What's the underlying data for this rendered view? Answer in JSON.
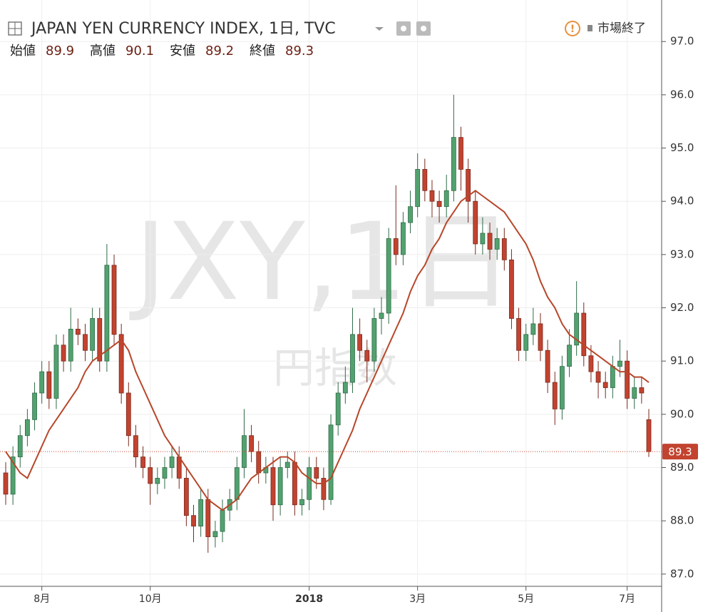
{
  "chart_data": {
    "type": "candlestick",
    "title": "JAPAN YEN CURRENCY INDEX, 1日, TVC",
    "status": "市場終了",
    "watermark": "JXY,1日",
    "watermark_sub": "円指数",
    "ohlc_labels": [
      "始値",
      "高値",
      "安値",
      "終値"
    ],
    "categories": [
      null,
      null,
      null,
      null,
      null,
      "8月",
      null,
      null,
      null,
      null,
      null,
      null,
      null,
      null,
      null,
      null,
      null,
      null,
      null,
      null,
      "10月",
      null,
      null,
      null,
      null,
      null,
      null,
      null,
      null,
      null,
      null,
      null,
      null,
      null,
      null,
      null,
      null,
      null,
      null,
      null,
      null,
      null,
      "2018",
      null,
      null,
      null,
      null,
      null,
      null,
      null,
      null,
      null,
      null,
      null,
      null,
      null,
      null,
      "3月",
      null,
      null,
      null,
      null,
      null,
      null,
      null,
      null,
      null,
      null,
      null,
      null,
      null,
      null,
      "5月",
      null,
      null,
      null,
      null,
      null,
      null,
      null,
      null,
      null,
      null,
      null,
      null,
      null,
      "7月",
      null,
      null,
      null
    ],
    "open": [
      88.9,
      88.5,
      89.2,
      89.6,
      89.9,
      90.4,
      90.8,
      90.3,
      91.3,
      91.0,
      91.6,
      91.5,
      91.2,
      91.8,
      91.0,
      92.8,
      91.5,
      90.4,
      89.6,
      89.2,
      89.0,
      88.7,
      88.8,
      89.0,
      89.2,
      88.8,
      88.1,
      87.9,
      88.4,
      87.7,
      87.8,
      88.2,
      88.4,
      89.0,
      89.6,
      89.3,
      88.9,
      89.0,
      88.3,
      89.0,
      89.1,
      88.3,
      88.4,
      89.0,
      88.8,
      88.4,
      89.8,
      90.4,
      90.6,
      91.5,
      91.2,
      91.0,
      91.8,
      91.9,
      93.3,
      93.0,
      93.6,
      93.9,
      94.6,
      94.2,
      94.0,
      93.9,
      94.2,
      95.2,
      94.6,
      94.0,
      93.2,
      93.4,
      93.1,
      93.3,
      92.9,
      91.8,
      91.2,
      91.5,
      91.7,
      91.2,
      90.6,
      90.1,
      90.9,
      91.3,
      91.9,
      91.1,
      90.8,
      90.6,
      90.5,
      90.9,
      91.0,
      90.3,
      90.5,
      89.9
    ],
    "high": [
      89.1,
      89.4,
      89.8,
      90.1,
      90.6,
      91.0,
      91.0,
      91.5,
      91.5,
      92.0,
      91.8,
      91.7,
      92.0,
      92.0,
      93.2,
      93.0,
      91.7,
      90.6,
      89.8,
      89.4,
      89.2,
      89.0,
      89.2,
      89.4,
      89.4,
      89.0,
      88.3,
      88.6,
      88.6,
      88.0,
      88.4,
      88.6,
      89.2,
      90.1,
      89.8,
      89.5,
      89.2,
      89.2,
      89.2,
      89.3,
      89.3,
      88.6,
      89.2,
      89.2,
      89.0,
      90.0,
      90.6,
      90.9,
      92.0,
      91.8,
      91.4,
      92.0,
      92.2,
      93.5,
      94.3,
      93.8,
      94.2,
      94.9,
      94.8,
      94.4,
      94.2,
      94.5,
      96.0,
      95.4,
      94.8,
      94.2,
      93.7,
      93.6,
      93.5,
      93.5,
      93.1,
      92.0,
      91.7,
      92.0,
      91.9,
      91.4,
      90.8,
      91.1,
      91.6,
      92.5,
      92.1,
      91.3,
      91.0,
      90.8,
      91.1,
      91.4,
      91.2,
      90.7,
      90.7,
      90.1
    ],
    "low": [
      88.3,
      88.3,
      89.0,
      89.4,
      89.7,
      90.2,
      90.1,
      90.1,
      90.8,
      90.8,
      91.3,
      91.0,
      91.0,
      90.8,
      90.8,
      91.3,
      90.2,
      89.4,
      89.0,
      88.8,
      88.3,
      88.5,
      88.6,
      88.8,
      88.6,
      87.9,
      87.6,
      87.7,
      87.4,
      87.5,
      87.6,
      88.0,
      88.2,
      88.8,
      89.1,
      88.7,
      88.7,
      88.0,
      88.1,
      88.8,
      88.1,
      88.1,
      88.2,
      88.6,
      88.2,
      88.3,
      89.6,
      90.2,
      90.4,
      91.0,
      90.6,
      90.8,
      91.5,
      91.7,
      92.8,
      92.8,
      93.4,
      93.7,
      94.0,
      93.7,
      93.6,
      93.7,
      94.0,
      94.2,
      93.6,
      93.0,
      93.0,
      92.9,
      92.9,
      92.7,
      91.6,
      91.0,
      91.0,
      91.3,
      91.0,
      90.4,
      89.8,
      89.9,
      90.7,
      91.1,
      90.9,
      90.6,
      90.3,
      90.3,
      90.3,
      90.7,
      90.1,
      90.1,
      90.2,
      89.2
    ],
    "close": [
      88.5,
      89.2,
      89.6,
      89.9,
      90.4,
      90.8,
      90.3,
      91.3,
      91.0,
      91.6,
      91.5,
      91.2,
      91.8,
      91.0,
      92.8,
      91.5,
      90.4,
      89.6,
      89.2,
      89.0,
      88.7,
      88.8,
      89.0,
      89.2,
      88.8,
      88.1,
      87.9,
      88.4,
      87.7,
      87.8,
      88.2,
      88.4,
      89.0,
      89.6,
      89.3,
      88.9,
      89.0,
      88.3,
      89.0,
      89.1,
      88.3,
      88.4,
      89.0,
      88.8,
      88.4,
      89.8,
      90.4,
      90.6,
      91.5,
      91.2,
      91.0,
      91.8,
      91.9,
      93.3,
      93.0,
      93.6,
      93.9,
      94.6,
      94.2,
      94.0,
      93.9,
      94.2,
      95.2,
      94.6,
      94.0,
      93.2,
      93.4,
      93.1,
      93.3,
      92.9,
      91.8,
      91.2,
      91.5,
      91.7,
      91.2,
      90.6,
      90.1,
      90.9,
      91.3,
      91.9,
      91.1,
      90.8,
      90.6,
      90.5,
      90.9,
      91.0,
      90.3,
      90.5,
      90.4,
      89.3
    ],
    "up_color": "#52a26f",
    "down_color": "#c2432f",
    "moving_average": {
      "color": "#b7472a",
      "values": [
        89.3,
        89.1,
        88.9,
        88.8,
        89.1,
        89.4,
        89.7,
        89.9,
        90.1,
        90.3,
        90.5,
        90.8,
        91.0,
        91.1,
        91.2,
        91.3,
        91.4,
        91.2,
        90.8,
        90.5,
        90.2,
        89.9,
        89.6,
        89.4,
        89.2,
        89.0,
        88.8,
        88.6,
        88.4,
        88.3,
        88.2,
        88.3,
        88.4,
        88.6,
        88.8,
        88.9,
        89.0,
        89.1,
        89.2,
        89.2,
        89.1,
        88.9,
        88.8,
        88.7,
        88.7,
        88.8,
        89.1,
        89.4,
        89.7,
        90.1,
        90.4,
        90.7,
        91.0,
        91.3,
        91.6,
        91.9,
        92.3,
        92.6,
        92.8,
        93.1,
        93.3,
        93.6,
        93.8,
        94.0,
        94.1,
        94.2,
        94.1,
        94.0,
        93.9,
        93.8,
        93.6,
        93.4,
        93.2,
        92.9,
        92.5,
        92.2,
        92.0,
        91.7,
        91.5,
        91.4,
        91.3,
        91.2,
        91.1,
        91.0,
        90.9,
        90.8,
        90.8,
        90.7,
        90.7,
        90.6
      ]
    },
    "ylim": [
      86.77,
      97.78
    ],
    "yticks": [
      {
        "value": 87,
        "label": "87.0"
      },
      {
        "value": 88,
        "label": "88.0"
      },
      {
        "value": 89,
        "label": "89.0"
      },
      {
        "value": 90,
        "label": "90.0"
      },
      {
        "value": 91,
        "label": "91.0"
      },
      {
        "value": 92,
        "label": "92.0"
      },
      {
        "value": 93,
        "label": "93.0"
      },
      {
        "value": 94,
        "label": "94.0"
      },
      {
        "value": 95,
        "label": "95.0"
      },
      {
        "value": 96,
        "label": "96.0"
      },
      {
        "value": 97,
        "label": "97.0"
      }
    ],
    "grid": true
  }
}
